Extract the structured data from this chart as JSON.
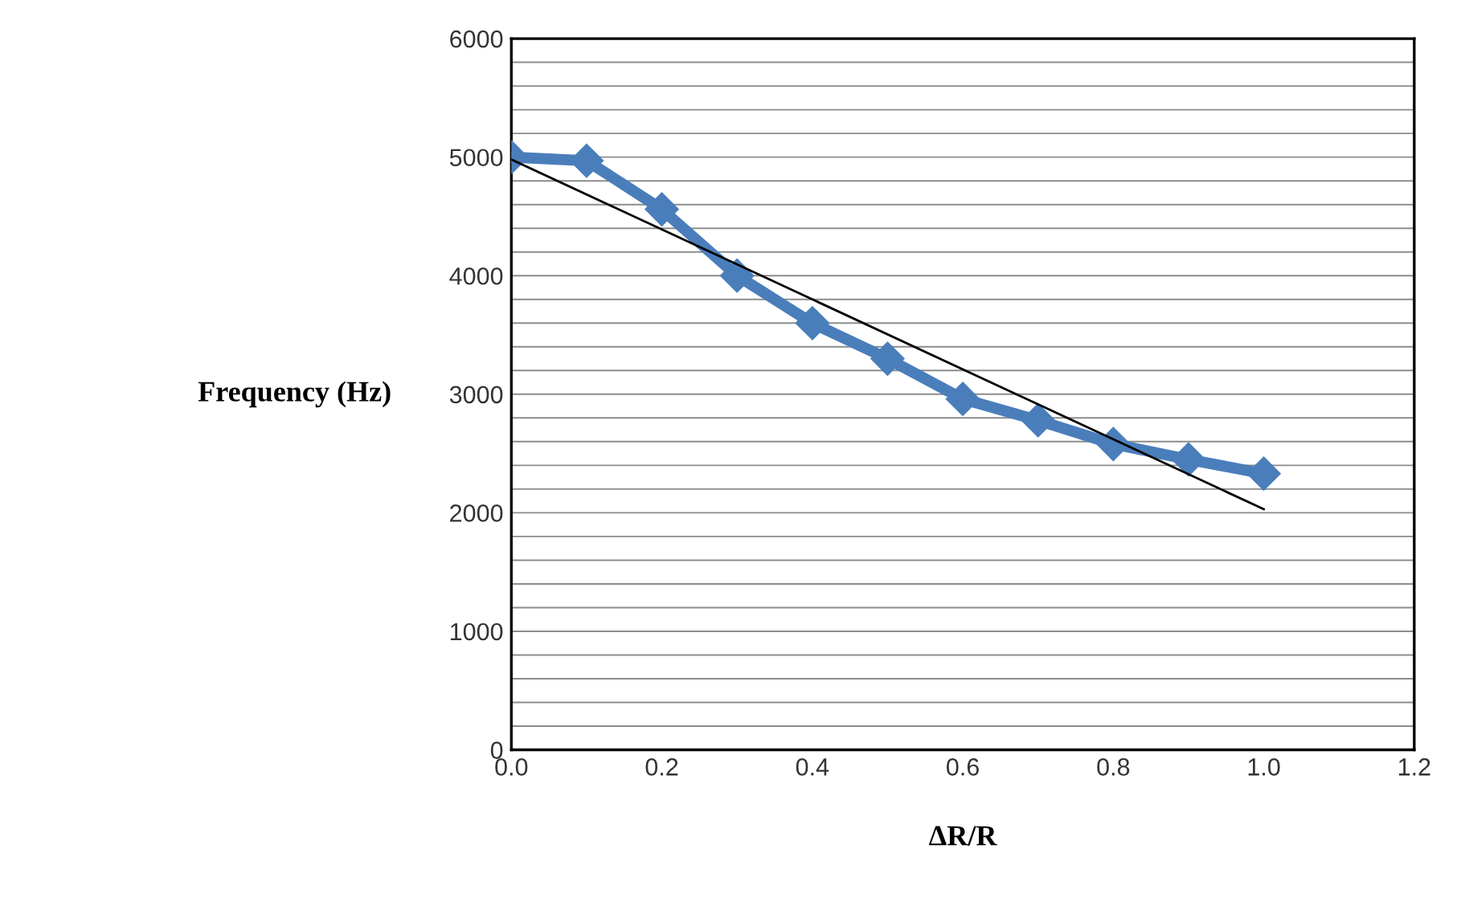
{
  "chart_data": {
    "type": "line",
    "xlabel": "ΔR/R",
    "ylabel": "Frequency (Hz)",
    "xlim": [
      0,
      1.2
    ],
    "xticks": [
      {
        "value": 0,
        "label": "0.0"
      },
      {
        "value": 0.2,
        "label": "0.2"
      },
      {
        "value": 0.4,
        "label": "0.4"
      },
      {
        "value": 0.6,
        "label": "0.6"
      },
      {
        "value": 0.8,
        "label": "0.8"
      },
      {
        "value": 1.0,
        "label": "1.0"
      },
      {
        "value": 1.2,
        "label": "1.2"
      }
    ],
    "ylim": [
      0,
      6000
    ],
    "yticks": [
      0,
      {
        "value": 200,
        "label": null
      },
      {
        "value": 400,
        "label": null
      },
      {
        "value": 600,
        "label": null
      },
      {
        "value": 800,
        "label": null
      },
      1000,
      {
        "value": 1200,
        "label": null
      },
      {
        "value": 1400,
        "label": null
      },
      {
        "value": 1600,
        "label": null
      },
      {
        "value": 1800,
        "label": null
      },
      2000,
      {
        "value": 2200,
        "label": null
      },
      {
        "value": 2400,
        "label": null
      },
      {
        "value": 2600,
        "label": null
      },
      {
        "value": 2800,
        "label": null
      },
      3000,
      {
        "value": 3200,
        "label": null
      },
      {
        "value": 3400,
        "label": null
      },
      {
        "value": 3600,
        "label": null
      },
      {
        "value": 3800,
        "label": null
      },
      4000,
      {
        "value": 4200,
        "label": null
      },
      {
        "value": 4400,
        "label": null
      },
      {
        "value": 4600,
        "label": null
      },
      {
        "value": 4800,
        "label": null
      },
      5000,
      {
        "value": 5200,
        "label": null
      },
      {
        "value": 5400,
        "label": null
      },
      {
        "value": 5600,
        "label": null
      },
      {
        "value": 5800,
        "label": null
      },
      6000
    ],
    "grid": "y",
    "legend": false,
    "series": [
      {
        "color": "#4a7ebb",
        "marker": "diamond",
        "line_style": "solid",
        "x": [
          0,
          0.1,
          0.2,
          0.3,
          0.4,
          0.5,
          0.6,
          0.7,
          0.8,
          0.9,
          1.0
        ],
        "values": [
          5000,
          4970,
          4560,
          4000,
          3600,
          3300,
          2960,
          2780,
          2580,
          2450,
          2330
        ]
      },
      {
        "color": "#000000",
        "marker": "none",
        "line_style": "solid",
        "x": [
          0,
          1.0
        ],
        "values": [
          4980,
          2030
        ]
      }
    ]
  }
}
